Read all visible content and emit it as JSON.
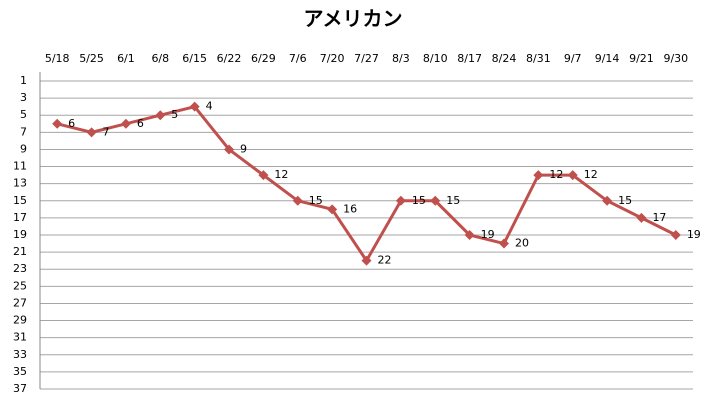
{
  "chart_data": {
    "type": "line",
    "title": "アメリカン",
    "categories": [
      "5/18",
      "5/25",
      "6/1",
      "6/8",
      "6/15",
      "6/22",
      "6/29",
      "7/6",
      "7/20",
      "7/27",
      "8/3",
      "8/10",
      "8/17",
      "8/24",
      "8/31",
      "9/7",
      "9/14",
      "9/21",
      "9/30"
    ],
    "series": [
      {
        "name": "アメリカン",
        "color": "#c0504d",
        "values": [
          6,
          7,
          6,
          5,
          4,
          9,
          12,
          15,
          16,
          22,
          15,
          15,
          19,
          20,
          12,
          12,
          15,
          17,
          19
        ]
      }
    ],
    "ylim": [
      1,
      37
    ],
    "yticks": [
      1,
      3,
      5,
      7,
      9,
      11,
      13,
      15,
      17,
      19,
      21,
      23,
      25,
      27,
      29,
      31,
      33,
      35,
      37
    ],
    "y_inverted": true,
    "grid": true
  }
}
